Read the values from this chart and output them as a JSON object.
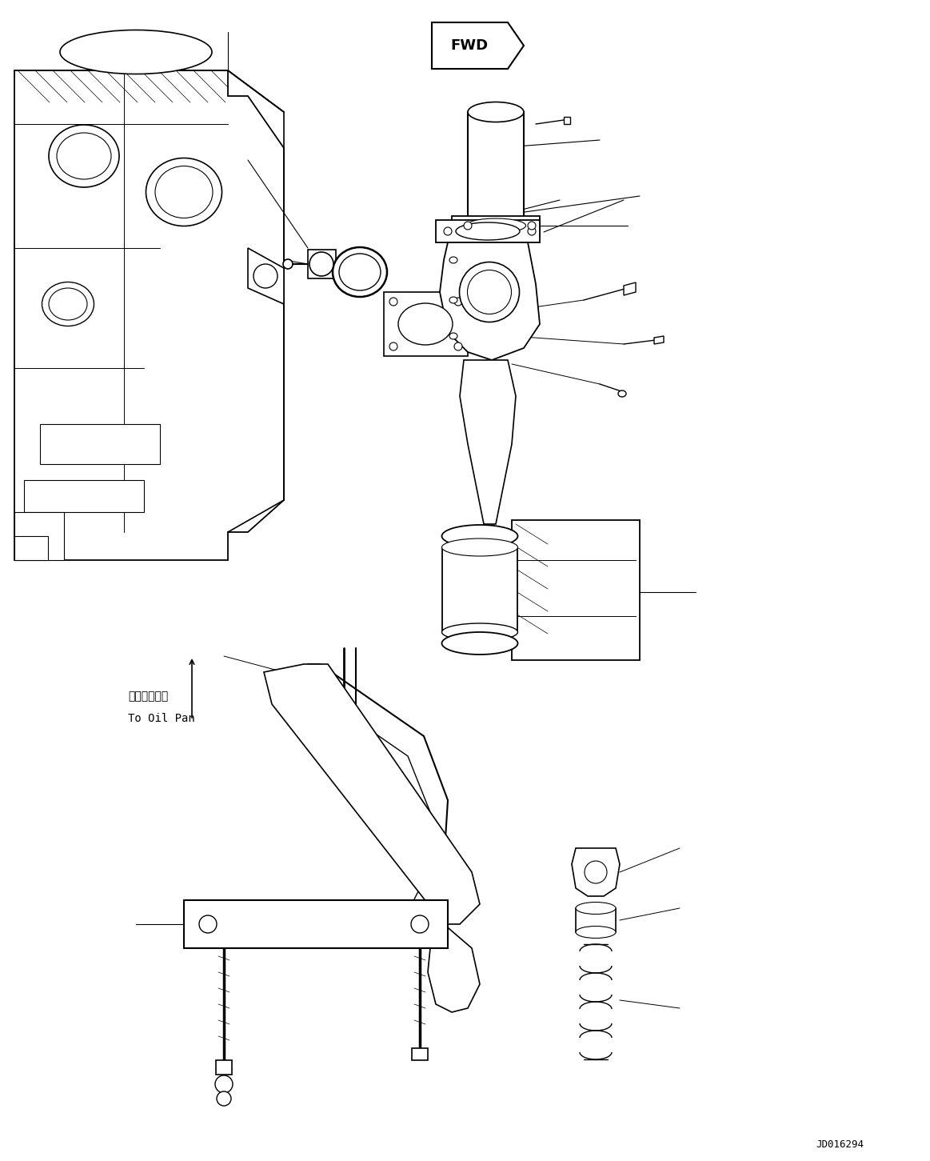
{
  "background_color": "#ffffff",
  "line_color": "#000000",
  "figsize": [
    11.63,
    14.51
  ],
  "dpi": 100,
  "label_oil_pan_jp": "オイルパンへ",
  "label_oil_pan_en": "To Oil Pan",
  "watermark": "JD016294",
  "lw_main": 1.2,
  "lw_thin": 0.7,
  "lw_thick": 1.5
}
